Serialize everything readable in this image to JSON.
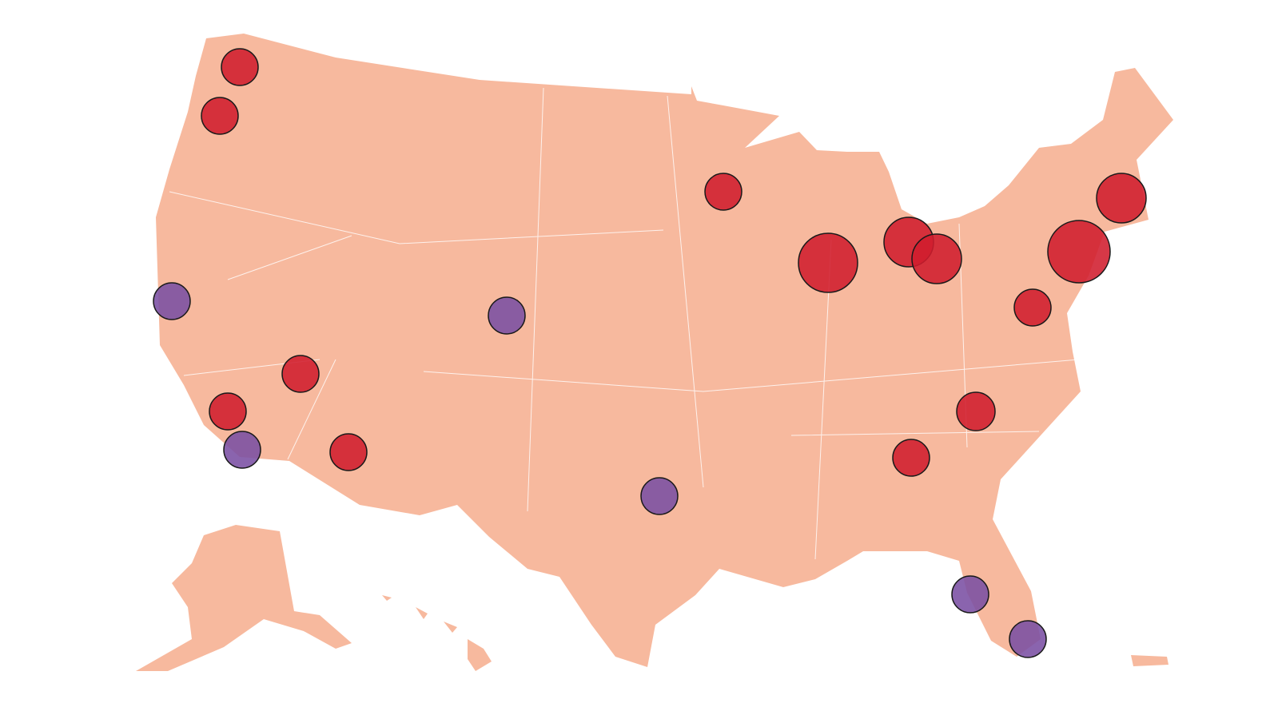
{
  "map": {
    "type": "bubble-map",
    "land_color": "#f7b99e",
    "border_color": "#ffffff",
    "marker_stroke": "#1a1a1a",
    "series": [
      {
        "color": "#d01c2e",
        "values": [
          23,
          23,
          23,
          23,
          23,
          23,
          37,
          31,
          31,
          39,
          31,
          23,
          24,
          23
        ]
      },
      {
        "color": "#7a4fa3",
        "values": [
          23,
          23,
          23,
          23,
          23,
          23
        ]
      }
    ]
  }
}
